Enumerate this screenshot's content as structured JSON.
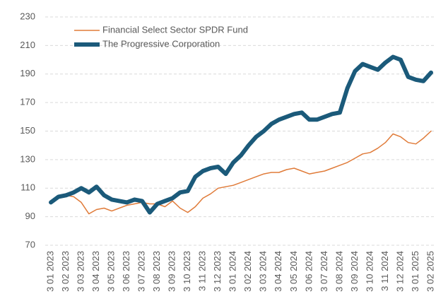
{
  "chart_data": {
    "type": "line",
    "categories": [
      "3 01 2023",
      null,
      "3 02 2023",
      null,
      "3 03 2023",
      null,
      "3 04 2023",
      null,
      "3 05 2023",
      null,
      "3 06 2023",
      null,
      "3 07 2023",
      null,
      "3 08 2023",
      null,
      "3 09 2023",
      null,
      "3 10 2023",
      null,
      "3 11 2023",
      null,
      "3 12 2023",
      null,
      "3 01 2024",
      null,
      "3 02 2024",
      null,
      "3 03 2024",
      null,
      "3 04 2024",
      null,
      "3 05 2024",
      null,
      "3 06 2024",
      null,
      "3 07 2024",
      null,
      "3 08 2024",
      null,
      "3 09 2024",
      null,
      "3 10 2024",
      null,
      "3 11 2024",
      null,
      "3 12 2024",
      null,
      "3 01 2025",
      null,
      "3 02 2025"
    ],
    "series": [
      {
        "name": "Financial Select Sector SPDR Fund",
        "color": "#e07b39",
        "width": 1.5,
        "values": [
          100,
          104,
          105,
          104,
          100,
          92,
          95,
          96,
          94,
          96,
          98,
          99,
          100,
          99,
          99,
          97,
          101,
          96,
          93,
          97,
          103,
          106,
          110,
          111,
          112,
          114,
          116,
          118,
          120,
          121,
          121,
          123,
          124,
          122,
          120,
          121,
          122,
          124,
          126,
          128,
          131,
          134,
          135,
          138,
          142,
          148,
          146,
          142,
          141,
          145,
          150
        ]
      },
      {
        "name": "The Progressive Corporation",
        "color": "#1b5a7a",
        "width": 6,
        "values": [
          100,
          104,
          105,
          107,
          110,
          107,
          111,
          105,
          102,
          101,
          100,
          102,
          101,
          93,
          99,
          101,
          103,
          107,
          108,
          118,
          122,
          124,
          125,
          120,
          128,
          133,
          140,
          146,
          150,
          155,
          158,
          160,
          162,
          163,
          158,
          158,
          160,
          162,
          163,
          180,
          192,
          197,
          195,
          193,
          198,
          202,
          200,
          188,
          186,
          185,
          191
        ]
      }
    ],
    "ylim": [
      70,
      230
    ],
    "yticks": [
      70,
      90,
      110,
      130,
      150,
      170,
      190,
      210,
      230
    ],
    "grid": true,
    "legend": "top-left"
  }
}
